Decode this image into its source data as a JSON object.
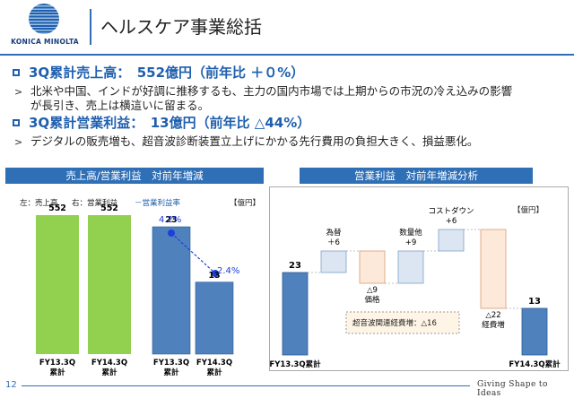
{
  "brand": {
    "logo_text": "KONICA MINOLTA",
    "tagline": "Giving Shape to Ideas"
  },
  "page": {
    "title": "ヘルスケア事業総括",
    "page_number": "12"
  },
  "summary": {
    "headline1": "3Q累計売上高：　552億円（前年比 ＋０%）",
    "bullet1_line1": "北米や中国、インドが好調に推移するも、主力の国内市場では上期からの市況の冷え込みの影響",
    "bullet1_line2": "が長引き、売上は横這いに留まる。",
    "headline2": "3Q累計営業利益：　13億円（前年比 △44%）",
    "bullet2_line1": "デジタルの販売増も、超音波診断装置立上げにかかる先行費用の負担大きく、損益悪化。"
  },
  "left_panel": {
    "header": "売上高/営業利益　対前年増減",
    "legend_sales": "左：売上高",
    "legend_profit": "右：営業利益",
    "legend_margin": "－営業利益率",
    "unit": "【億円】"
  },
  "right_panel": {
    "header": "営業利益　対前年増減分析",
    "unit": "【億円】",
    "callout": "超音波関連経費増：△16"
  },
  "chart_data": [
    {
      "type": "bar",
      "title": "売上高/営業利益　対前年増減",
      "series": [
        {
          "name": "売上高",
          "categories": [
            "FY13.3Q\n累計",
            "FY14.3Q\n累計"
          ],
          "values": [
            552,
            552
          ],
          "color": "#92d050"
        },
        {
          "name": "営業利益",
          "categories": [
            "FY13.3Q\n累計",
            "FY14.3Q\n累計"
          ],
          "values": [
            23,
            13
          ],
          "color": "#4f81bd"
        },
        {
          "name": "営業利益率",
          "type": "line",
          "values_pct": [
            4.2,
            2.4
          ],
          "labels": [
            "4.2%",
            "2.4%"
          ],
          "color": "#1f3fdc"
        }
      ],
      "unit": "億円"
    },
    {
      "type": "bar",
      "subtype": "waterfall",
      "title": "営業利益　対前年増減分析",
      "categories": [
        "FY13.3Q累計",
        "為替",
        "価格",
        "数量他",
        "コストダウン",
        "経費増",
        "FY14.3Q累計"
      ],
      "values": [
        23,
        6,
        -9,
        9,
        6,
        -22,
        13
      ],
      "labels": [
        "23",
        "為替\n＋6",
        "△9\n価格",
        "数量他\n+9",
        "コストダウン\n+6",
        "△22\n経費増",
        "13"
      ],
      "unit": "億円"
    }
  ]
}
